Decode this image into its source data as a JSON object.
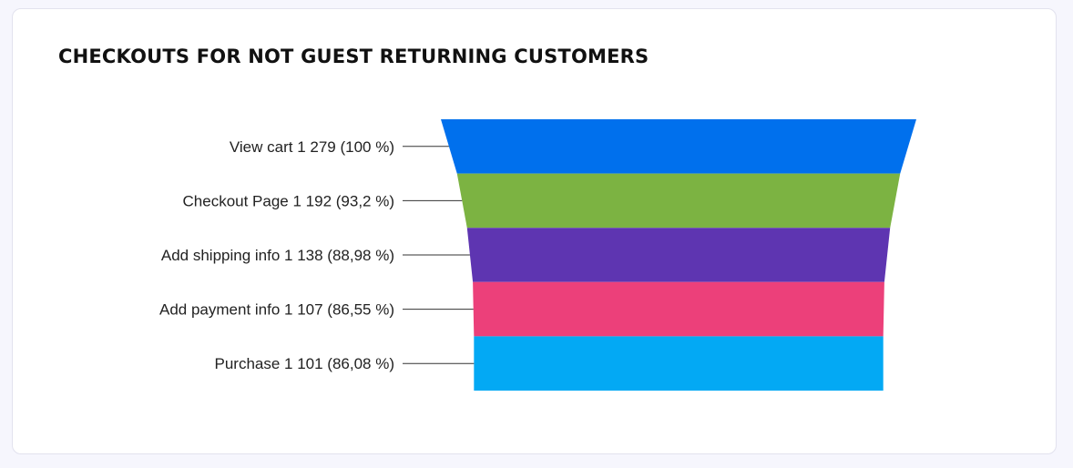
{
  "card": {
    "title": "CHECKOUTS FOR NOT GUEST RETURNING CUSTOMERS"
  },
  "chart_data": {
    "type": "funnel",
    "title": "CHECKOUTS FOR NOT GUEST RETURNING CUSTOMERS",
    "stages": [
      {
        "name": "View cart",
        "value": 1279,
        "percent": 100,
        "label": "View cart 1 279 (100 %)",
        "color": "#0070ed"
      },
      {
        "name": "Checkout Page",
        "value": 1192,
        "percent": 93.2,
        "label": "Checkout Page 1 192 (93,2 %)",
        "color": "#7cb342"
      },
      {
        "name": "Add shipping info",
        "value": 1138,
        "percent": 88.98,
        "label": "Add shipping info 1 138 (88,98 %)",
        "color": "#5e35b1"
      },
      {
        "name": "Add payment info",
        "value": 1107,
        "percent": 86.55,
        "label": "Add payment info 1 107 (86,55 %)",
        "color": "#ec407a"
      },
      {
        "name": "Purchase",
        "value": 1101,
        "percent": 86.08,
        "label": "Purchase 1 101 (86,08 %)",
        "color": "#03a9f4"
      }
    ]
  }
}
